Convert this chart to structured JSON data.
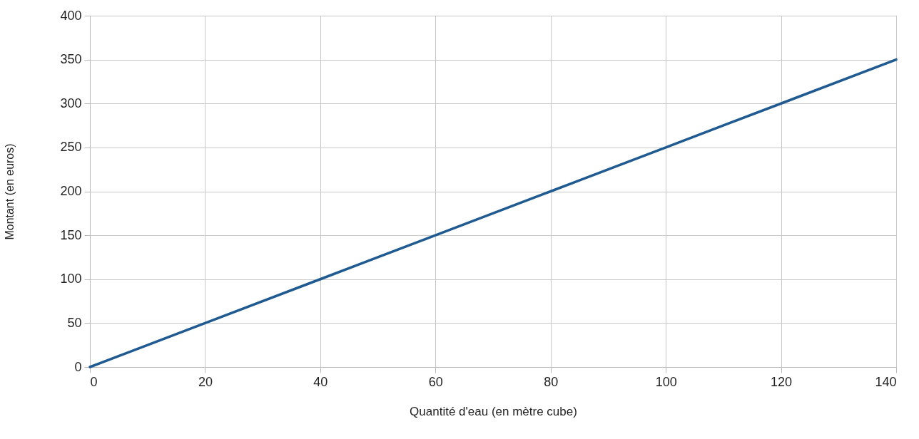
{
  "chart_data": {
    "type": "line",
    "xlabel": "Quantité d'eau (en mètre cube)",
    "ylabel": "Montant (en euros)",
    "x": [
      0,
      20,
      40,
      60,
      80,
      100,
      120,
      140
    ],
    "series": [
      {
        "color": "#1f5a91",
        "values": [
          0,
          50,
          100,
          150,
          200,
          250,
          300,
          350
        ]
      }
    ],
    "xlim": [
      0,
      140
    ],
    "xticks": [
      0,
      20,
      40,
      60,
      80,
      100,
      120,
      140
    ],
    "ylim": [
      0,
      400
    ],
    "yticks": [
      0,
      50,
      100,
      150,
      200,
      250,
      300,
      350,
      400
    ],
    "grid": true,
    "marker": "none",
    "line_style": "solid"
  }
}
